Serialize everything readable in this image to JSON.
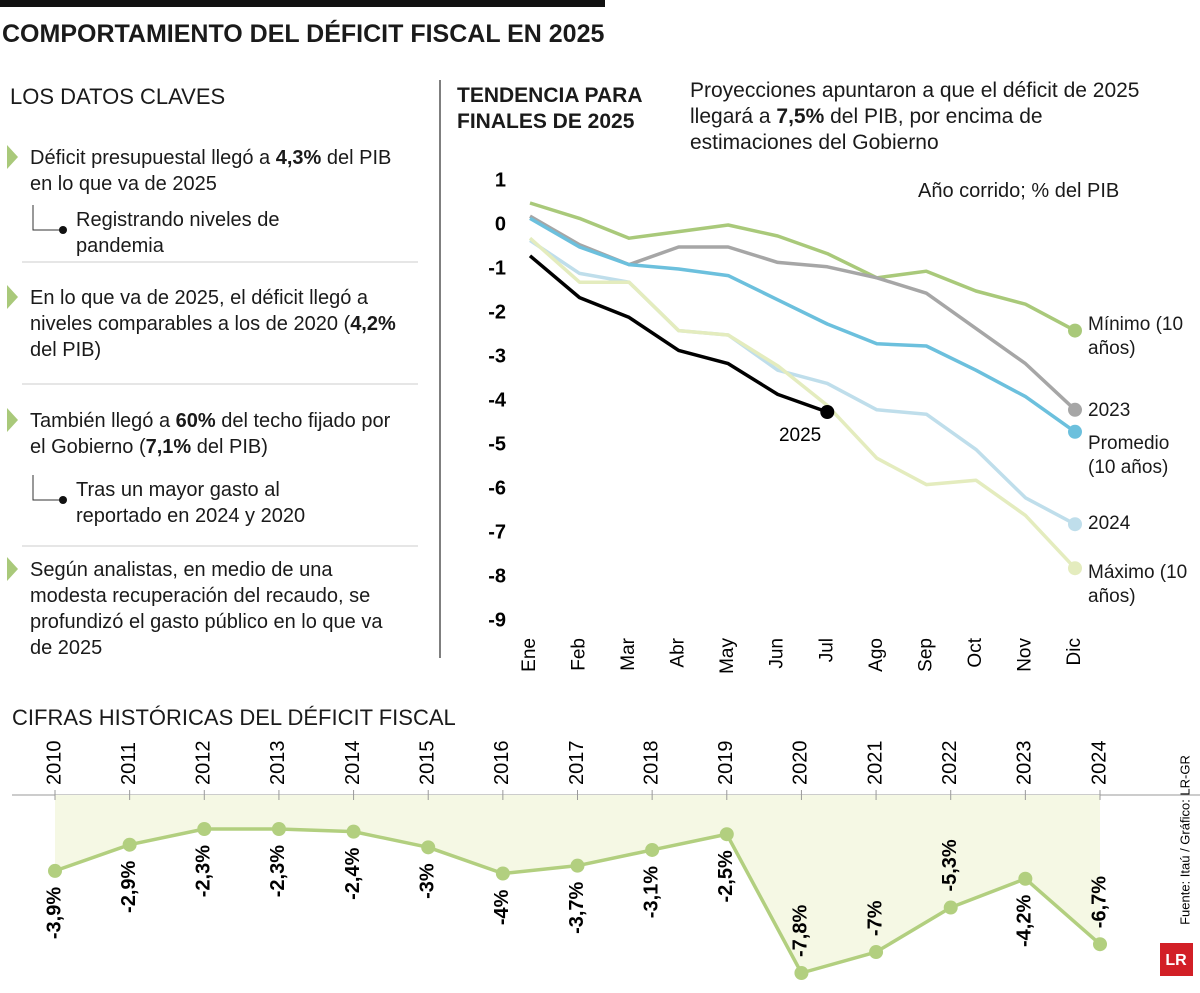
{
  "title": "COMPORTAMIENTO DEL DÉFICIT FISCAL EN 2025",
  "key_facts": {
    "heading": "LOS DATOS CLAVES",
    "items": [
      {
        "parts": [
          {
            "text": "Déficit presupuestal llegó a ",
            "bold": false
          },
          {
            "text": "4,3%",
            "bold": true
          },
          {
            "text": " del PIB en lo que va de 2025",
            "bold": false
          }
        ],
        "note": "Registrando niveles de pandemia"
      },
      {
        "parts": [
          {
            "text": "En lo que va de 2025, el déficit llegó a niveles comparables a los de 2020 (",
            "bold": false
          },
          {
            "text": "4,2%",
            "bold": true
          },
          {
            "text": " del PIB)",
            "bold": false
          }
        ]
      },
      {
        "parts": [
          {
            "text": "También llegó a ",
            "bold": false
          },
          {
            "text": "60%",
            "bold": true
          },
          {
            "text": " del techo fijado por el Gobierno (",
            "bold": false
          },
          {
            "text": "7,1%",
            "bold": true
          },
          {
            "text": " del PIB)",
            "bold": false
          }
        ],
        "note": "Tras un mayor gasto al reportado en 2024 y 2020"
      },
      {
        "parts": [
          {
            "text": "Según analistas, en medio de una modesta recuperación del recaudo, se profundizó el gasto público en lo que va de 2025",
            "bold": false
          }
        ]
      }
    ]
  },
  "chart_data": [
    {
      "type": "line",
      "title": "TENDENCIA PARA FINALES DE 2025",
      "subtitle_parts": [
        {
          "text": "Proyecciones apuntaron a que el déficit de 2025 llegará a ",
          "bold": false
        },
        {
          "text": "7,5%",
          "bold": true
        },
        {
          "text": " del PIB, por encima de estimaciones del Gobierno",
          "bold": false
        }
      ],
      "note": "Año corrido; % del PIB",
      "categories": [
        "Ene",
        "Feb",
        "Mar",
        "Abr",
        "May",
        "Jun",
        "Jul",
        "Ago",
        "Sep",
        "Oct",
        "Nov",
        "Dic"
      ],
      "ylim": [
        -9,
        1
      ],
      "yticks": [
        1,
        0,
        -1,
        -2,
        -3,
        -4,
        -5,
        -6,
        -7,
        -8,
        -9
      ],
      "series": [
        {
          "name": "Mínimo (10 años)",
          "color": "#a9c97a",
          "values": [
            0.5,
            0.15,
            -0.3,
            -0.15,
            0,
            -0.25,
            -0.65,
            -1.2,
            -1.05,
            -1.5,
            -1.8,
            -2.4
          ]
        },
        {
          "name": "2023",
          "color": "#a6a6a6",
          "values": [
            0.2,
            -0.45,
            -0.9,
            -0.5,
            -0.5,
            -0.85,
            -0.95,
            -1.2,
            -1.55,
            -2.35,
            -3.15,
            -4.2
          ]
        },
        {
          "name": "Promedio (10 años)",
          "color": "#6cc0dd",
          "values": [
            0.15,
            -0.5,
            -0.9,
            -1.0,
            -1.15,
            -1.7,
            -2.25,
            -2.7,
            -2.75,
            -3.3,
            -3.9,
            -4.7
          ]
        },
        {
          "name": "2024",
          "color": "#bfdeeb",
          "values": [
            -0.35,
            -1.1,
            -1.3,
            -2.4,
            -2.5,
            -3.3,
            -3.6,
            -4.2,
            -4.3,
            -5.1,
            -6.2,
            -6.8
          ]
        },
        {
          "name": "Máximo (10 años)",
          "color": "#e4ecbe",
          "values": [
            -0.3,
            -1.3,
            -1.3,
            -2.4,
            -2.5,
            -3.2,
            -4.1,
            -5.3,
            -5.9,
            -5.8,
            -6.6,
            -7.8
          ]
        },
        {
          "name": "2025",
          "color": "#000000",
          "values": [
            -0.7,
            -1.65,
            -2.1,
            -2.85,
            -3.15,
            -3.85,
            -4.25,
            null,
            null,
            null,
            null,
            null
          ]
        }
      ]
    },
    {
      "type": "line",
      "title": "CIFRAS HISTÓRICAS DEL DÉFICIT FISCAL",
      "categories": [
        "2010",
        "2011",
        "2012",
        "2013",
        "2014",
        "2015",
        "2016",
        "2017",
        "2018",
        "2019",
        "2020",
        "2021",
        "2022",
        "2023",
        "2024"
      ],
      "color": "#b2cf7f",
      "values": [
        -3.9,
        -2.9,
        -2.3,
        -2.3,
        -2.4,
        -3,
        -4,
        -3.7,
        -3.1,
        -2.5,
        -7.8,
        -7,
        -5.3,
        -4.2,
        -6.7
      ],
      "value_labels": [
        "-3,9%",
        "-2,9%",
        "-2,3%",
        "-2,3%",
        "-2,4%",
        "-3%",
        "-4%",
        "-3,7%",
        "-3,1%",
        "-2,5%",
        "-7,8%",
        "-7%",
        "-5,3%",
        "-4,2%",
        "-6,7%"
      ]
    }
  ],
  "source": "Fuente: Itaú / Gráfico: LR-GR",
  "logo": "LR"
}
